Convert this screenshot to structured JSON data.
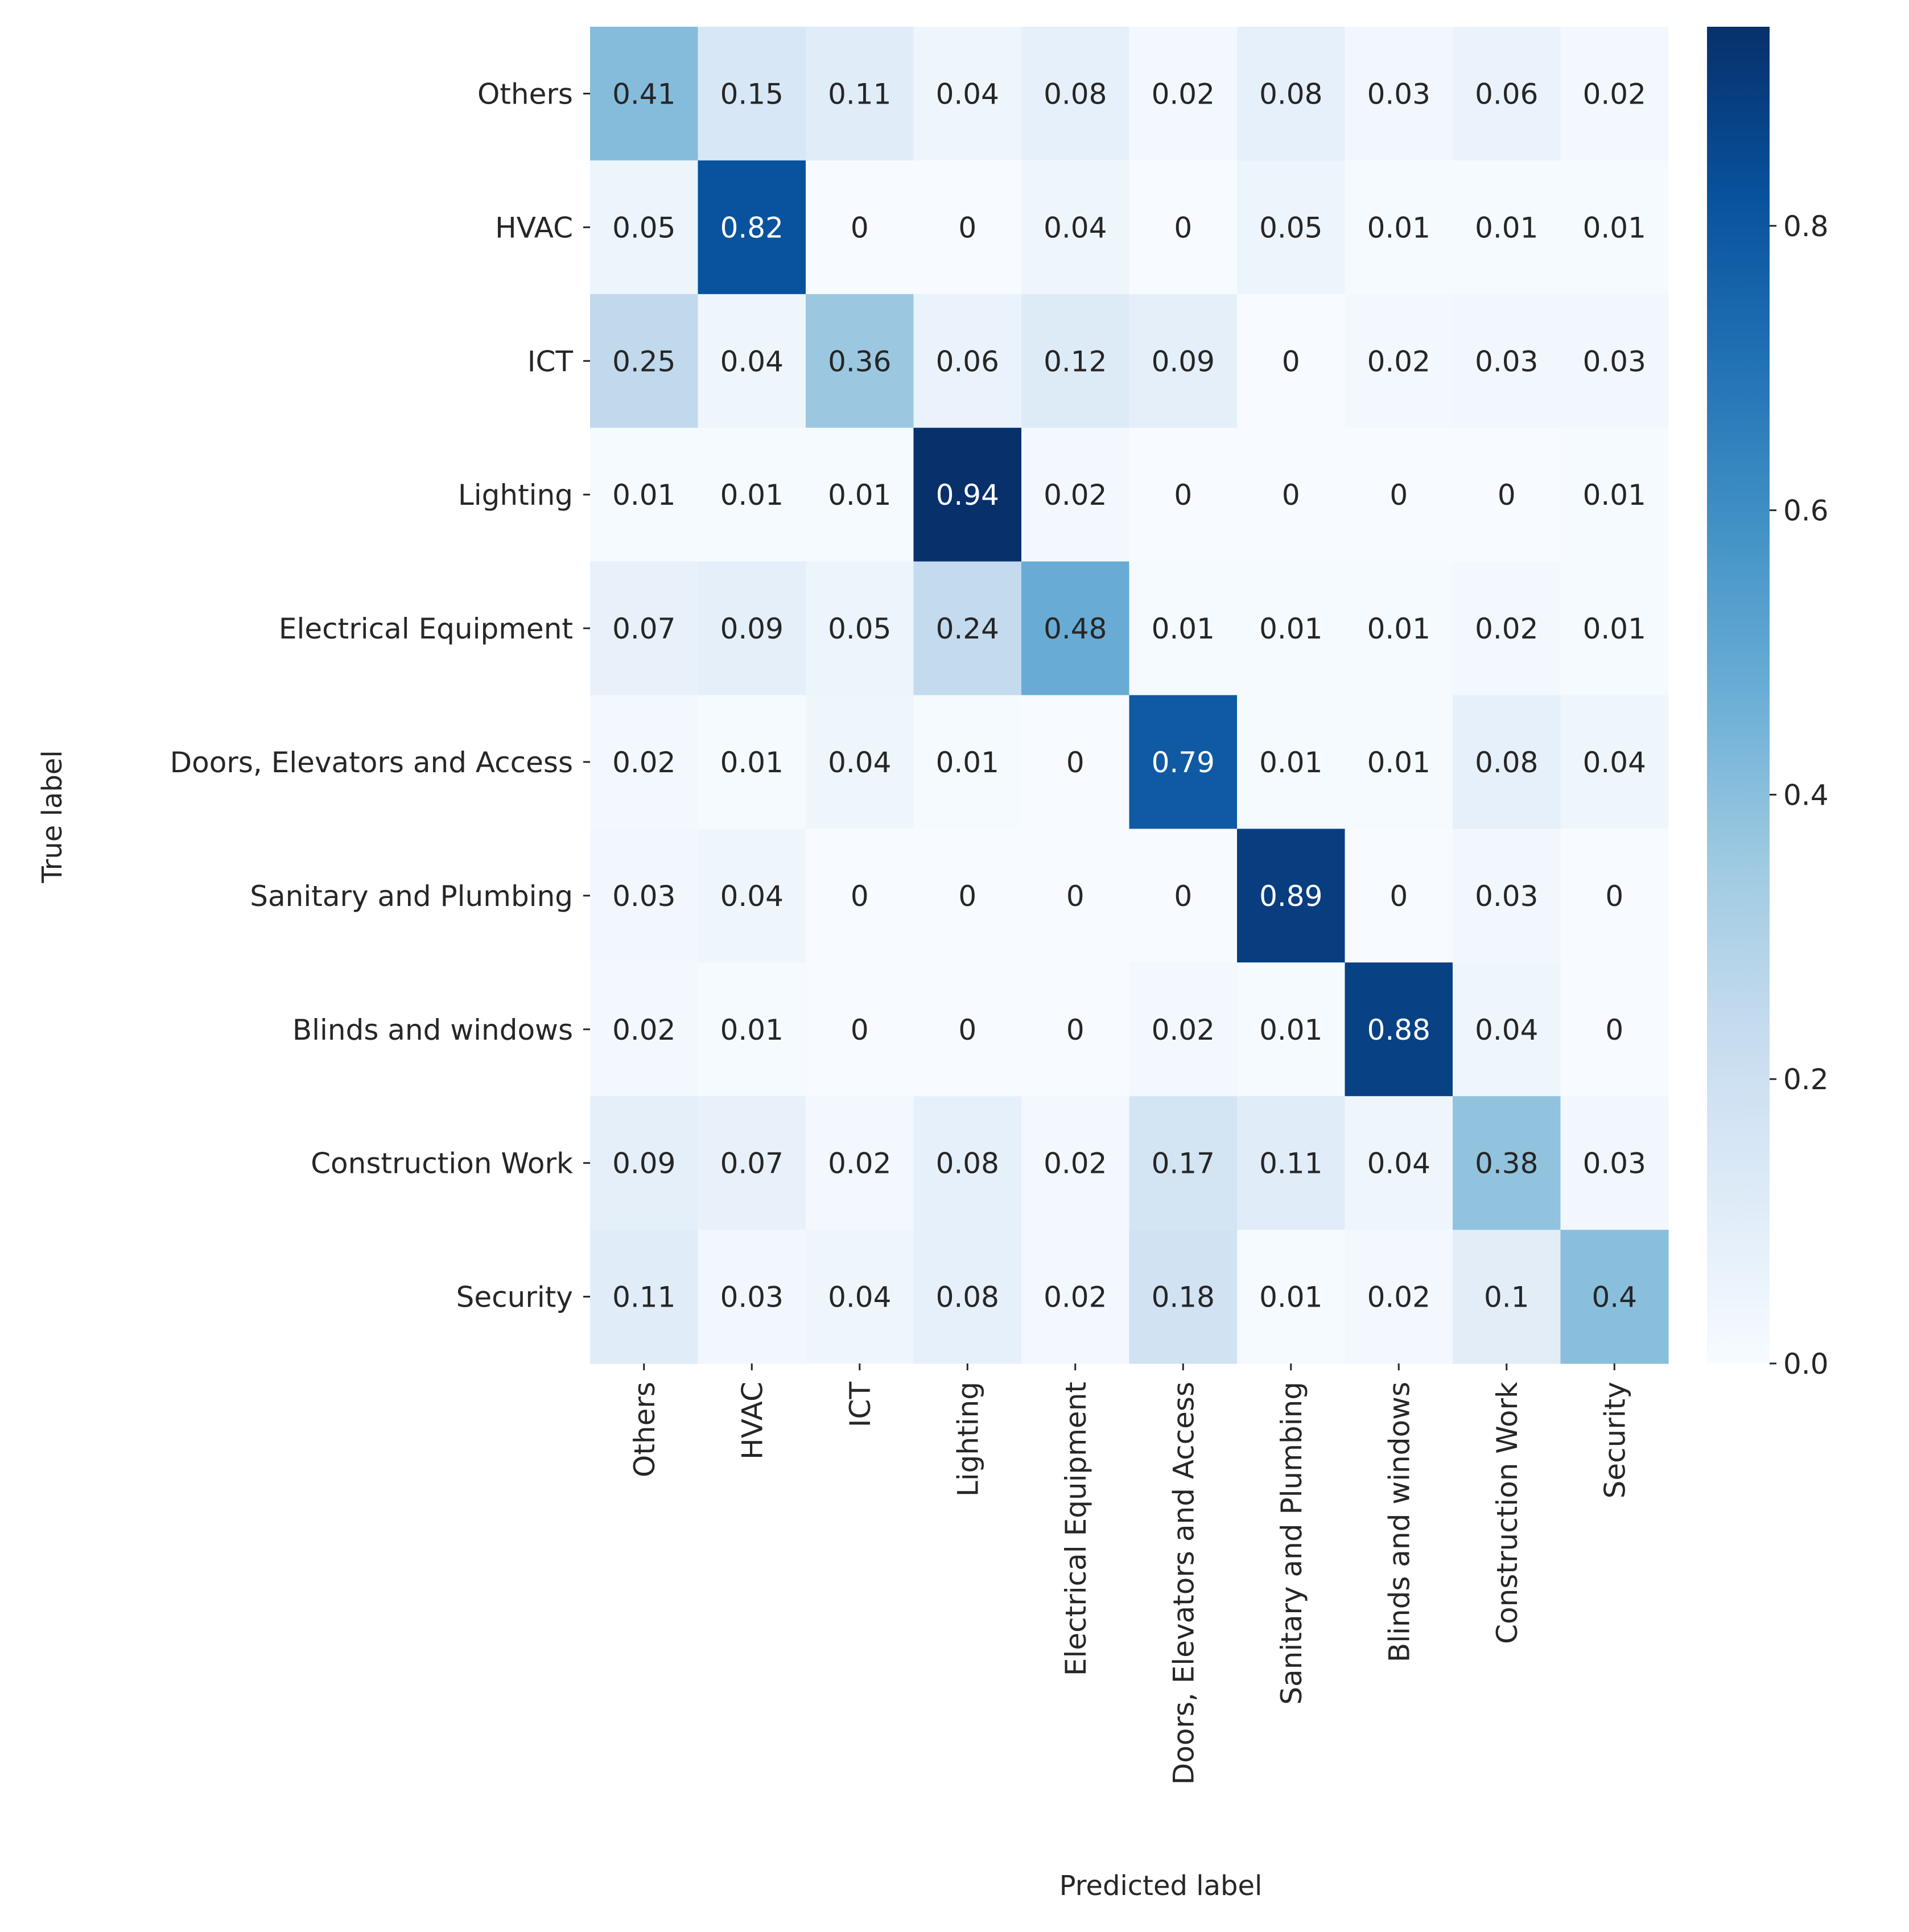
{
  "chart_data": {
    "type": "heatmap",
    "title": "",
    "xlabel": "Predicted label",
    "ylabel": "True label",
    "categories": [
      "Others",
      "HVAC",
      "ICT",
      "Lighting",
      "Electrical Equipment",
      "Doors, Elevators and Access",
      "Sanitary and Plumbing",
      "Blinds and windows",
      "Construction Work",
      "Security"
    ],
    "cell_labels": [
      [
        "0.41",
        "0.15",
        "0.11",
        "0.04",
        "0.08",
        "0.02",
        "0.08",
        "0.03",
        "0.06",
        "0.02"
      ],
      [
        "0.05",
        "0.82",
        "0",
        "0",
        "0.04",
        "0",
        "0.05",
        "0.01",
        "0.01",
        "0.01"
      ],
      [
        "0.25",
        "0.04",
        "0.36",
        "0.06",
        "0.12",
        "0.09",
        "0",
        "0.02",
        "0.03",
        "0.03"
      ],
      [
        "0.01",
        "0.01",
        "0.01",
        "0.94",
        "0.02",
        "0",
        "0",
        "0",
        "0",
        "0.01"
      ],
      [
        "0.07",
        "0.09",
        "0.05",
        "0.24",
        "0.48",
        "0.01",
        "0.01",
        "0.01",
        "0.02",
        "0.01"
      ],
      [
        "0.02",
        "0.01",
        "0.04",
        "0.01",
        "0",
        "0.79",
        "0.01",
        "0.01",
        "0.08",
        "0.04"
      ],
      [
        "0.03",
        "0.04",
        "0",
        "0",
        "0",
        "0",
        "0.89",
        "0",
        "0.03",
        "0"
      ],
      [
        "0.02",
        "0.01",
        "0",
        "0",
        "0",
        "0.02",
        "0.01",
        "0.88",
        "0.04",
        "0"
      ],
      [
        "0.09",
        "0.07",
        "0.02",
        "0.08",
        "0.02",
        "0.17",
        "0.11",
        "0.04",
        "0.38",
        "0.03"
      ],
      [
        "0.11",
        "0.03",
        "0.04",
        "0.08",
        "0.02",
        "0.18",
        "0.01",
        "0.02",
        "0.1",
        "0.4"
      ]
    ],
    "colorbar": {
      "range": [
        0,
        0.94
      ],
      "ticks": [
        0.0,
        0.2,
        0.4,
        0.6,
        0.8
      ],
      "tick_labels": [
        "0.0",
        "0.2",
        "0.4",
        "0.6",
        "0.8"
      ],
      "colormap": "Blues",
      "colors": [
        "#f7fbff",
        "#deebf7",
        "#c6dbef",
        "#9ecae1",
        "#6baed6",
        "#4292c6",
        "#2171b5",
        "#08519c",
        "#08306b"
      ]
    }
  }
}
